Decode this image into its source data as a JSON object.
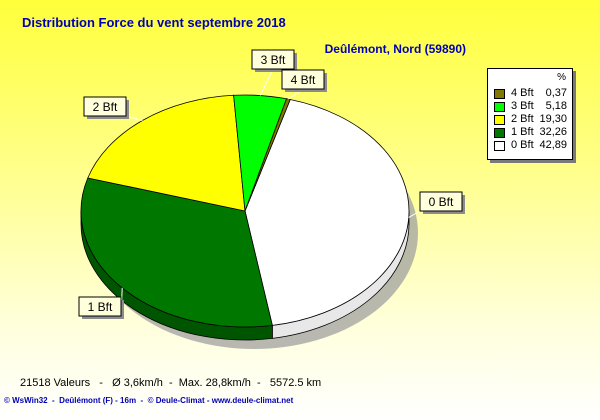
{
  "title": "Distribution Force du vent  septembre 2018",
  "station": "Deûlémont, Nord (59890)",
  "legend": {
    "header": "%",
    "items": [
      {
        "label": "4 Bft",
        "value": "0,37",
        "color": "#807800"
      },
      {
        "label": "3 Bft",
        "value": "5,18",
        "color": "#00ff00"
      },
      {
        "label": "2 Bft",
        "value": "19,30",
        "color": "#ffff00"
      },
      {
        "label": "1 Bft",
        "value": "32,26",
        "color": "#007800"
      },
      {
        "label": "0 Bft",
        "value": "42,89",
        "color": "#ffffff"
      }
    ]
  },
  "chart_data": {
    "type": "pie",
    "title": "Distribution Force du vent  septembre 2018",
    "slices": [
      {
        "label": "0 Bft",
        "value": 42.89,
        "color": "#ffffff"
      },
      {
        "label": "1 Bft",
        "value": 32.26,
        "color": "#007800"
      },
      {
        "label": "2 Bft",
        "value": 19.3,
        "color": "#ffff00"
      },
      {
        "label": "3 Bft",
        "value": 5.18,
        "color": "#00ff00"
      },
      {
        "label": "4 Bft",
        "value": 0.37,
        "color": "#807800"
      }
    ],
    "legend_position": "top-right"
  },
  "footer": {
    "stats": "21518 Valeurs   -   Ø 3,6km/h  -  Max. 28,8km/h  -   5572.5 km",
    "credits": "© WsWin32  -  Deûlémont (F) - 16m  -  © Deule-Climat - www.deule-climat.net"
  }
}
